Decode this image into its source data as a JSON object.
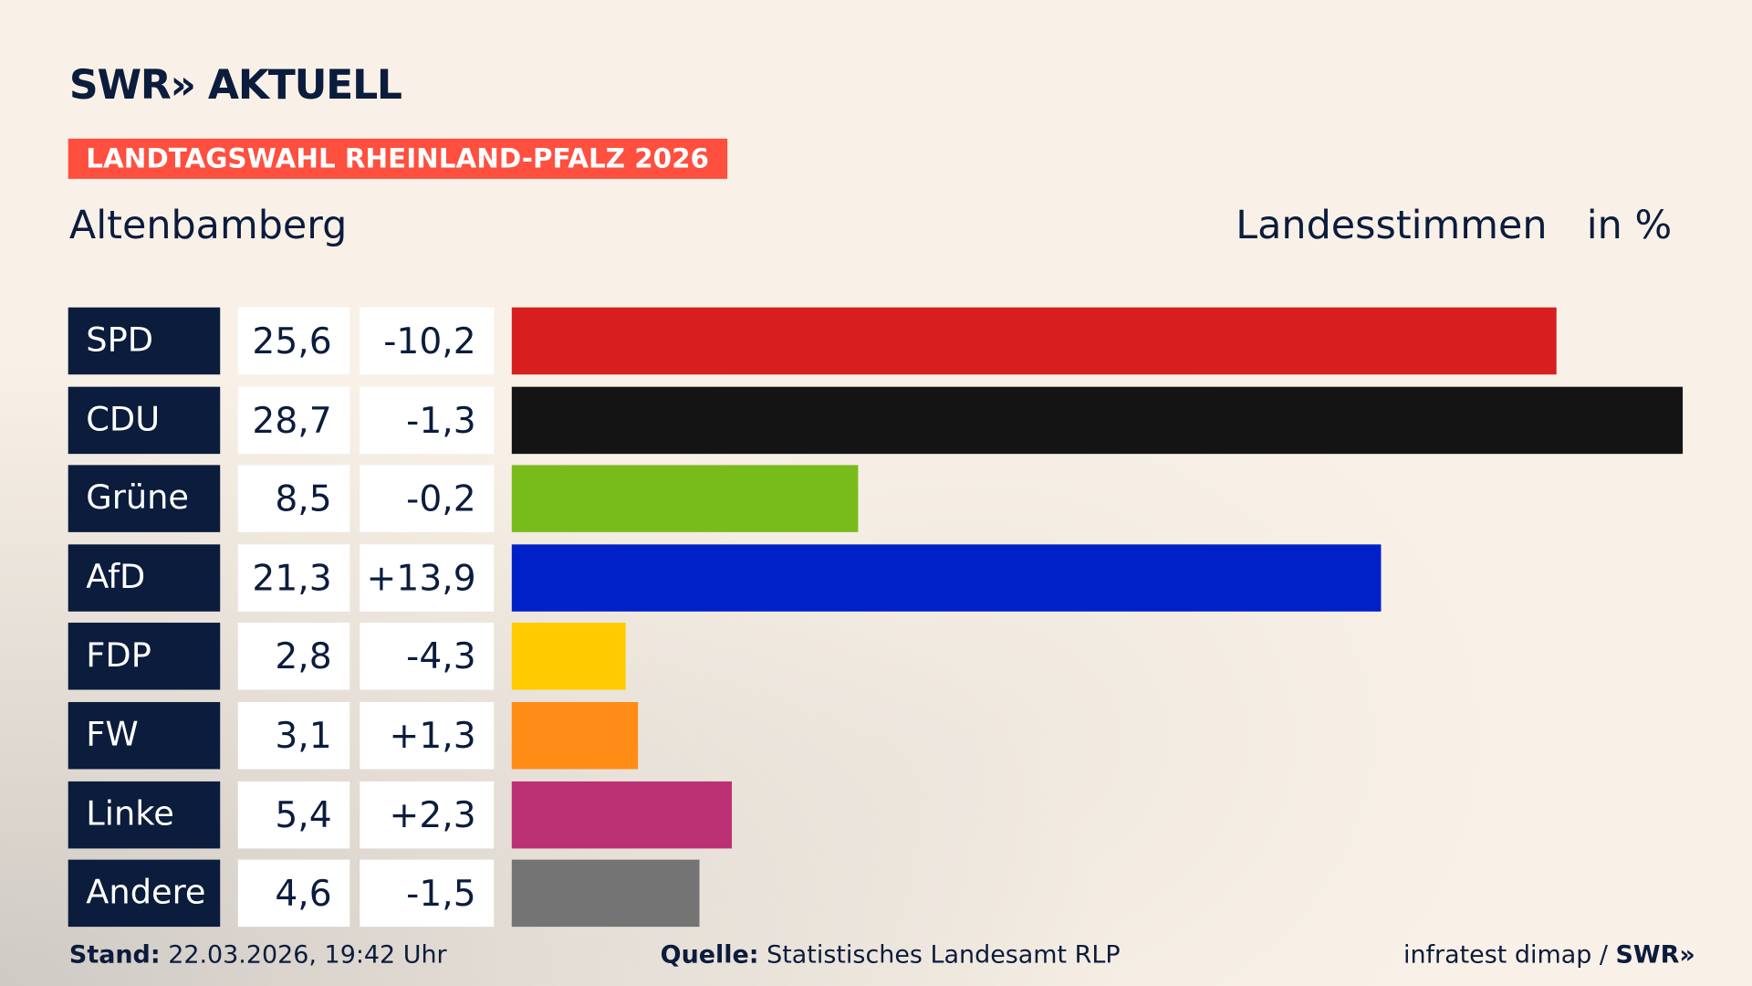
{
  "header": {
    "logo_text": "SWR» AKTUELL",
    "banner": "LANDTAGSWAHL RHEINLAND-PFALZ 2026",
    "location": "Altenbamberg",
    "measure": "Landesstimmen",
    "unit": "in %"
  },
  "colors": {
    "banner": "#ff4f3f",
    "navy": "#0b1c3d"
  },
  "chart_data": {
    "type": "bar",
    "orientation": "horizontal",
    "categories": [
      "SPD",
      "CDU",
      "Grüne",
      "AfD",
      "FDP",
      "FW",
      "Linke",
      "Andere"
    ],
    "values": [
      25.6,
      28.7,
      8.5,
      21.3,
      2.8,
      3.1,
      5.4,
      4.6
    ],
    "value_labels": [
      "25,6",
      "28,7",
      "8,5",
      "21,3",
      "2,8",
      "3,1",
      "5,4",
      "4,6"
    ],
    "diff_labels": [
      "-10,2",
      "-1,3",
      "-0,2",
      "+13,9",
      "-4,3",
      "+1,3",
      "+2,3",
      "-1,5"
    ],
    "diffs": [
      -10.2,
      -1.3,
      -0.2,
      13.9,
      -4.3,
      1.3,
      2.3,
      -1.5
    ],
    "colors": [
      "#d71f1f",
      "#141414",
      "#78bc1b",
      "#0021c8",
      "#ffcc00",
      "#ff8c17",
      "#bc3174",
      "#747474"
    ],
    "xlim": [
      0,
      28.7
    ],
    "grid": false
  },
  "footer": {
    "stand_label": "Stand:",
    "stand_value": "22.03.2026, 19:42 Uhr",
    "source_label": "Quelle:",
    "source_value": "Statistisches Landesamt RLP",
    "credit": "infratest dimap / ",
    "credit_logo": "SWR»"
  }
}
